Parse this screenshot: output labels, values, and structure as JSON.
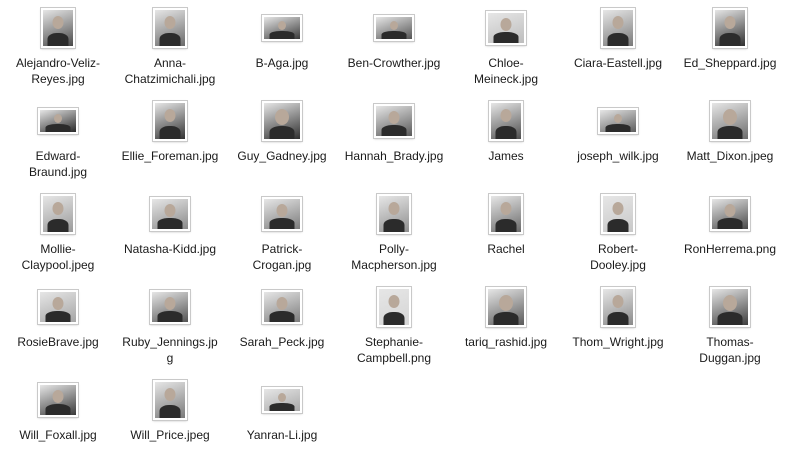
{
  "files": [
    {
      "label": "Alejandro-Veliz-Reyes.jpg",
      "lines": [
        "Alejandro-Veliz-",
        "Reyes.jpg"
      ],
      "orient": "portrait",
      "tone": "#4a4a4a"
    },
    {
      "label": "Anna-Chatzimichali.jpg",
      "lines": [
        "Anna-",
        "Chatzimichali.jpg"
      ],
      "orient": "portrait",
      "tone": "#6a6a6a"
    },
    {
      "label": "B-Aga.jpg",
      "lines": [
        "B-Aga.jpg"
      ],
      "orient": "wide",
      "tone": "#3a3a3a"
    },
    {
      "label": "Ben-Crowther.jpg",
      "lines": [
        "Ben-Crowther.jpg"
      ],
      "orient": "wide",
      "tone": "#555555"
    },
    {
      "label": "Chloe-Meineck.jpg",
      "lines": [
        "Chloe-",
        "Meineck.jpg"
      ],
      "orient": "landscape",
      "tone": "#bdbdbd"
    },
    {
      "label": "Ciara-Eastell.jpg",
      "lines": [
        "Ciara-Eastell.jpg"
      ],
      "orient": "portrait",
      "tone": "#7a7a7a"
    },
    {
      "label": "Ed_Sheppard.jpg",
      "lines": [
        "Ed_Sheppard.jpg"
      ],
      "orient": "portrait",
      "tone": "#303030"
    },
    {
      "label": "Edward-Braund.jpg",
      "lines": [
        "Edward-",
        "Braund.jpg"
      ],
      "orient": "wide",
      "tone": "#2a2a2a"
    },
    {
      "label": "Ellie_Foreman.jpg",
      "lines": [
        "Ellie_Foreman.jpg"
      ],
      "orient": "portrait",
      "tone": "#333333"
    },
    {
      "label": "Guy_Gadney.jpg",
      "lines": [
        "Guy_Gadney.jpg"
      ],
      "orient": "square",
      "tone": "#2f2f2f"
    },
    {
      "label": "Hannah_Brady.jpg",
      "lines": [
        "Hannah_Brady.jpg"
      ],
      "orient": "landscape",
      "tone": "#5a5a5a"
    },
    {
      "label": "James",
      "lines": [
        "James"
      ],
      "orient": "portrait",
      "tone": "#4f4f4f"
    },
    {
      "label": "joseph_wilk.jpg",
      "lines": [
        "joseph_wilk.jpg"
      ],
      "orient": "wide",
      "tone": "#5e5e5e"
    },
    {
      "label": "Matt_Dixon.jpeg",
      "lines": [
        "Matt_Dixon.jpeg"
      ],
      "orient": "square",
      "tone": "#6e6e6e"
    },
    {
      "label": "Mollie-Claypool.jpeg",
      "lines": [
        "Mollie-",
        "Claypool.jpeg"
      ],
      "orient": "portrait",
      "tone": "#9a9a9a"
    },
    {
      "label": "Natasha-Kidd.jpg",
      "lines": [
        "Natasha-Kidd.jpg"
      ],
      "orient": "landscape",
      "tone": "#8a8a8a"
    },
    {
      "label": "Patrick-Crogan.jpg",
      "lines": [
        "Patrick-",
        "Crogan.jpg"
      ],
      "orient": "landscape",
      "tone": "#7c7c7c"
    },
    {
      "label": "Polly-Macpherson.jpg",
      "lines": [
        "Polly-",
        "Macpherson.jpg"
      ],
      "orient": "portrait",
      "tone": "#8f8f8f"
    },
    {
      "label": "Rachel",
      "lines": [
        "Rachel"
      ],
      "orient": "portrait",
      "tone": "#6a6a6a"
    },
    {
      "label": "Robert-Dooley.jpg",
      "lines": [
        "Robert-",
        "Dooley.jpg"
      ],
      "orient": "portrait",
      "tone": "#c8c8c8"
    },
    {
      "label": "RonHerrema.png",
      "lines": [
        "RonHerrema.png"
      ],
      "orient": "landscape",
      "tone": "#4a4a4a"
    },
    {
      "label": "RosieBrave.jpg",
      "lines": [
        "RosieBrave.jpg"
      ],
      "orient": "landscape",
      "tone": "#a5a5a5"
    },
    {
      "label": "Ruby_Jennings.jpg",
      "lines": [
        "Ruby_Jennings.jp",
        "g"
      ],
      "orient": "landscape",
      "tone": "#555555"
    },
    {
      "label": "Sarah_Peck.jpg",
      "lines": [
        "Sarah_Peck.jpg"
      ],
      "orient": "landscape",
      "tone": "#7d7d7d"
    },
    {
      "label": "Stephanie-Campbell.png",
      "lines": [
        "Stephanie-",
        "Campbell.png"
      ],
      "orient": "portrait",
      "tone": "#d5d5d5"
    },
    {
      "label": "tariq_rashid.jpg",
      "lines": [
        "tariq_rashid.jpg"
      ],
      "orient": "square",
      "tone": "#5a5a5a"
    },
    {
      "label": "Thom_Wright.jpg",
      "lines": [
        "Thom_Wright.jpg"
      ],
      "orient": "portrait",
      "tone": "#8a8a8a"
    },
    {
      "label": "Thomas-Duggan.jpg",
      "lines": [
        "Thomas-",
        "Duggan.jpg"
      ],
      "orient": "square",
      "tone": "#3e3e3e"
    },
    {
      "label": "Will_Foxall.jpg",
      "lines": [
        "Will_Foxall.jpg"
      ],
      "orient": "landscape",
      "tone": "#3a3a3a"
    },
    {
      "label": "Will_Price.jpeg",
      "lines": [
        "Will_Price.jpeg"
      ],
      "orient": "portrait",
      "tone": "#7a7a7a"
    },
    {
      "label": "Yanran-Li.jpg",
      "lines": [
        "Yanran-Li.jpg"
      ],
      "orient": "wide",
      "tone": "#a8a8a8"
    }
  ]
}
